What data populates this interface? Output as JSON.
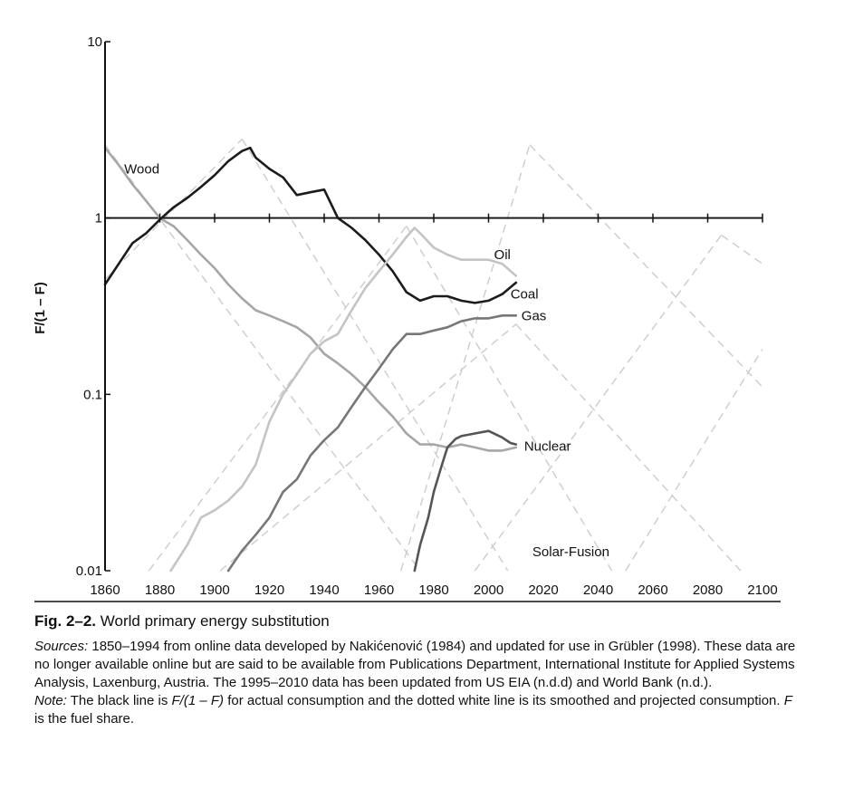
{
  "chart_data": {
    "type": "line",
    "y_scale": "log",
    "ylim": [
      0.01,
      10
    ],
    "xlim": [
      1860,
      2100
    ],
    "ylabel": "F/(1 – F)",
    "xlabel": "",
    "x_ticks": [
      1860,
      1880,
      1900,
      1920,
      1940,
      1960,
      1980,
      2000,
      2020,
      2040,
      2060,
      2080,
      2100
    ],
    "y_ticks": [
      {
        "value": 10,
        "label": "10"
      },
      {
        "value": 1,
        "label": "1"
      },
      {
        "value": 0.1,
        "label": "0.1"
      },
      {
        "value": 0.01,
        "label": "0.01"
      }
    ],
    "series": [
      {
        "name": "Wood",
        "color": "#a6a6a6",
        "x": [
          1860,
          1865,
          1870,
          1875,
          1880,
          1885,
          1890,
          1895,
          1900,
          1905,
          1910,
          1915,
          1920,
          1925,
          1930,
          1935,
          1940,
          1945,
          1950,
          1955,
          1960,
          1965,
          1970,
          1975,
          1980,
          1985,
          1990,
          1995,
          2000,
          2005,
          2010
        ],
        "y": [
          2.5,
          2.0,
          1.55,
          1.25,
          1.0,
          0.9,
          0.75,
          0.62,
          0.52,
          0.42,
          0.35,
          0.3,
          0.28,
          0.26,
          0.24,
          0.21,
          0.17,
          0.15,
          0.13,
          0.11,
          0.09,
          0.075,
          0.06,
          0.052,
          0.052,
          0.05,
          0.052,
          0.05,
          0.048,
          0.048,
          0.05
        ]
      },
      {
        "name": "Coal",
        "color": "#1c1c1c",
        "x": [
          1860,
          1865,
          1870,
          1875,
          1880,
          1885,
          1890,
          1895,
          1900,
          1905,
          1910,
          1913,
          1915,
          1920,
          1925,
          1930,
          1935,
          1940,
          1945,
          1950,
          1955,
          1960,
          1965,
          1970,
          1975,
          1980,
          1985,
          1990,
          1995,
          2000,
          2005,
          2010
        ],
        "y": [
          0.42,
          0.55,
          0.72,
          0.82,
          0.98,
          1.15,
          1.3,
          1.5,
          1.75,
          2.1,
          2.4,
          2.5,
          2.2,
          1.9,
          1.7,
          1.35,
          1.4,
          1.45,
          1.0,
          0.88,
          0.75,
          0.62,
          0.5,
          0.38,
          0.34,
          0.36,
          0.36,
          0.34,
          0.33,
          0.34,
          0.37,
          0.43
        ]
      },
      {
        "name": "Oil",
        "color": "#c4c4c4",
        "x": [
          1884,
          1890,
          1895,
          1900,
          1905,
          1910,
          1915,
          1920,
          1925,
          1930,
          1935,
          1940,
          1945,
          1950,
          1955,
          1960,
          1965,
          1970,
          1973,
          1975,
          1980,
          1985,
          1990,
          1995,
          2000,
          2005,
          2010
        ],
        "y": [
          0.01,
          0.014,
          0.02,
          0.022,
          0.025,
          0.03,
          0.04,
          0.07,
          0.1,
          0.13,
          0.17,
          0.2,
          0.22,
          0.3,
          0.4,
          0.5,
          0.62,
          0.78,
          0.88,
          0.82,
          0.68,
          0.62,
          0.58,
          0.58,
          0.58,
          0.55,
          0.47
        ]
      },
      {
        "name": "Gas",
        "color": "#777777",
        "x": [
          1905,
          1910,
          1915,
          1920,
          1925,
          1930,
          1935,
          1940,
          1945,
          1950,
          1955,
          1960,
          1965,
          1970,
          1975,
          1980,
          1985,
          1990,
          1995,
          2000,
          2005,
          2010
        ],
        "y": [
          0.01,
          0.013,
          0.016,
          0.02,
          0.028,
          0.033,
          0.045,
          0.055,
          0.065,
          0.085,
          0.11,
          0.14,
          0.18,
          0.22,
          0.22,
          0.23,
          0.24,
          0.26,
          0.27,
          0.27,
          0.28,
          0.28
        ]
      },
      {
        "name": "Nuclear",
        "color": "#555555",
        "x": [
          1973,
          1975,
          1978,
          1980,
          1983,
          1985,
          1988,
          1990,
          1995,
          2000,
          2005,
          2008,
          2010
        ],
        "y": [
          0.01,
          0.014,
          0.02,
          0.028,
          0.04,
          0.05,
          0.056,
          0.058,
          0.06,
          0.062,
          0.057,
          0.053,
          0.052
        ]
      }
    ],
    "projections": [
      {
        "of": "Wood",
        "x": [
          1860,
          1975
        ],
        "y": [
          2.6,
          0.01
        ]
      },
      {
        "of": "Coal",
        "x": [
          1860,
          1910
        ],
        "y": [
          0.45,
          2.8
        ]
      },
      {
        "of": "Coal",
        "x": [
          1910,
          2007
        ],
        "y": [
          2.8,
          0.01
        ]
      },
      {
        "of": "Oil",
        "x": [
          1876,
          1970
        ],
        "y": [
          0.01,
          0.9
        ]
      },
      {
        "of": "Oil",
        "x": [
          1970,
          2045
        ],
        "y": [
          0.9,
          0.01
        ]
      },
      {
        "of": "Gas",
        "x": [
          1902,
          2010
        ],
        "y": [
          0.01,
          0.25
        ]
      },
      {
        "of": "Gas",
        "x": [
          2010,
          2092
        ],
        "y": [
          0.25,
          0.01
        ]
      },
      {
        "of": "Nuclear",
        "x": [
          1968,
          2015
        ],
        "y": [
          0.01,
          2.6
        ]
      },
      {
        "of": "Nuclear",
        "x": [
          2015,
          2100
        ],
        "y": [
          2.6,
          0.11
        ]
      },
      {
        "of": "Solar-Fusion",
        "x": [
          1995,
          2085
        ],
        "y": [
          0.01,
          0.8
        ]
      },
      {
        "of": "Solar-Fusion",
        "x": [
          2085,
          2100
        ],
        "y": [
          0.8,
          0.55
        ]
      },
      {
        "of": "",
        "x": [
          2050,
          2100
        ],
        "y": [
          0.01,
          0.18
        ]
      }
    ],
    "labels": [
      {
        "text": "Wood",
        "x": 1867,
        "y": 1.9
      },
      {
        "text": "Oil",
        "x": 2002,
        "y": 0.62
      },
      {
        "text": "Coal",
        "x": 2008,
        "y": 0.37
      },
      {
        "text": "Gas",
        "x": 2012,
        "y": 0.28
      },
      {
        "text": "Nuclear",
        "x": 2013,
        "y": 0.051
      },
      {
        "text": "Solar-Fusion",
        "x": 2016,
        "y": 0.0128
      }
    ],
    "grid": false,
    "colors": {
      "reference_line": "#1c1c1c",
      "projection_line": "#cccccc"
    }
  },
  "caption": {
    "fig_number": "Fig. 2–2.",
    "fig_title": "World primary energy substitution",
    "sources_lead": "Sources:",
    "sources_text": "1850–1994 from online data developed by Nakićenović (1984) and updated for use in Grübler (1998). These data are no longer available online but are said to be available from Publications Department, International Institute for Applied Systems Analysis, Laxenburg, Austria. The 1995–2010 data has been updated from US EIA (n.d.d) and World Bank (n.d.).",
    "note_lead": "Note:",
    "note_text_1": "The black line is",
    "note_formula": "F/(1 – F)",
    "note_text_2": "for actual consumption and the dotted white line is its smoothed and projected consumption.",
    "note_var": "F",
    "note_text_3": "is the fuel share."
  }
}
